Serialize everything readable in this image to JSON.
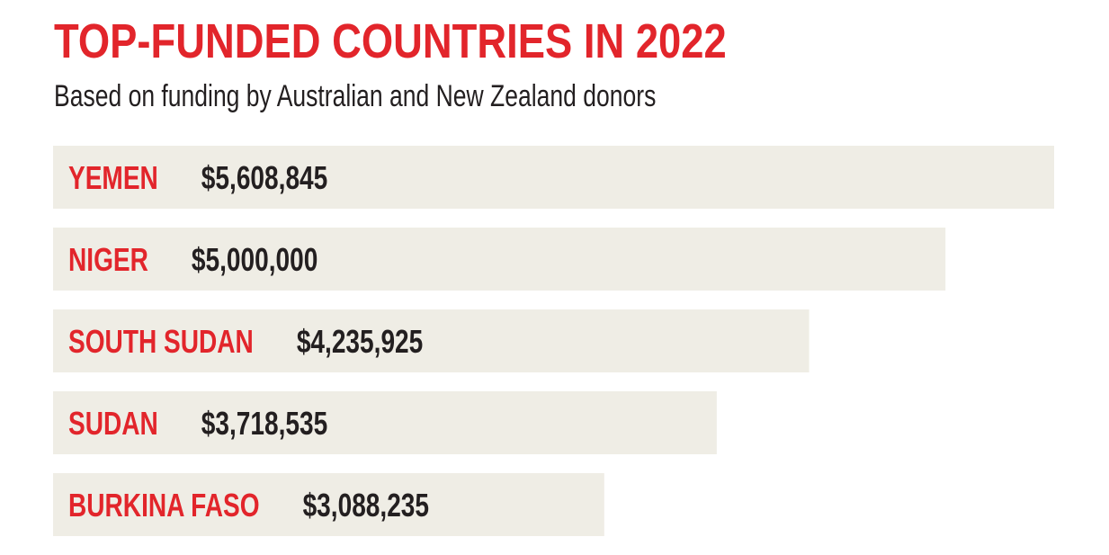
{
  "chart_data": {
    "type": "bar",
    "orientation": "horizontal",
    "title": "TOP-FUNDED COUNTRIES IN 2022",
    "subtitle": "Based on funding by Australian and New Zealand donors",
    "categories": [
      "YEMEN",
      "NIGER",
      "SOUTH SUDAN",
      "SUDAN",
      "BURKINA FASO"
    ],
    "values": [
      5608845,
      5000000,
      4235925,
      3718535,
      3088235
    ],
    "value_labels": [
      "$5,608,845",
      "$5,000,000",
      "$4,235,925",
      "$3,718,535",
      "$3,088,235"
    ],
    "xlim": [
      0,
      5608845
    ],
    "grid": false,
    "legend": "none"
  },
  "colors": {
    "title": "#e2252b",
    "category_label": "#e2252b",
    "value_label": "#231f20",
    "bar": "#efede5",
    "subtitle": "#231f20"
  }
}
